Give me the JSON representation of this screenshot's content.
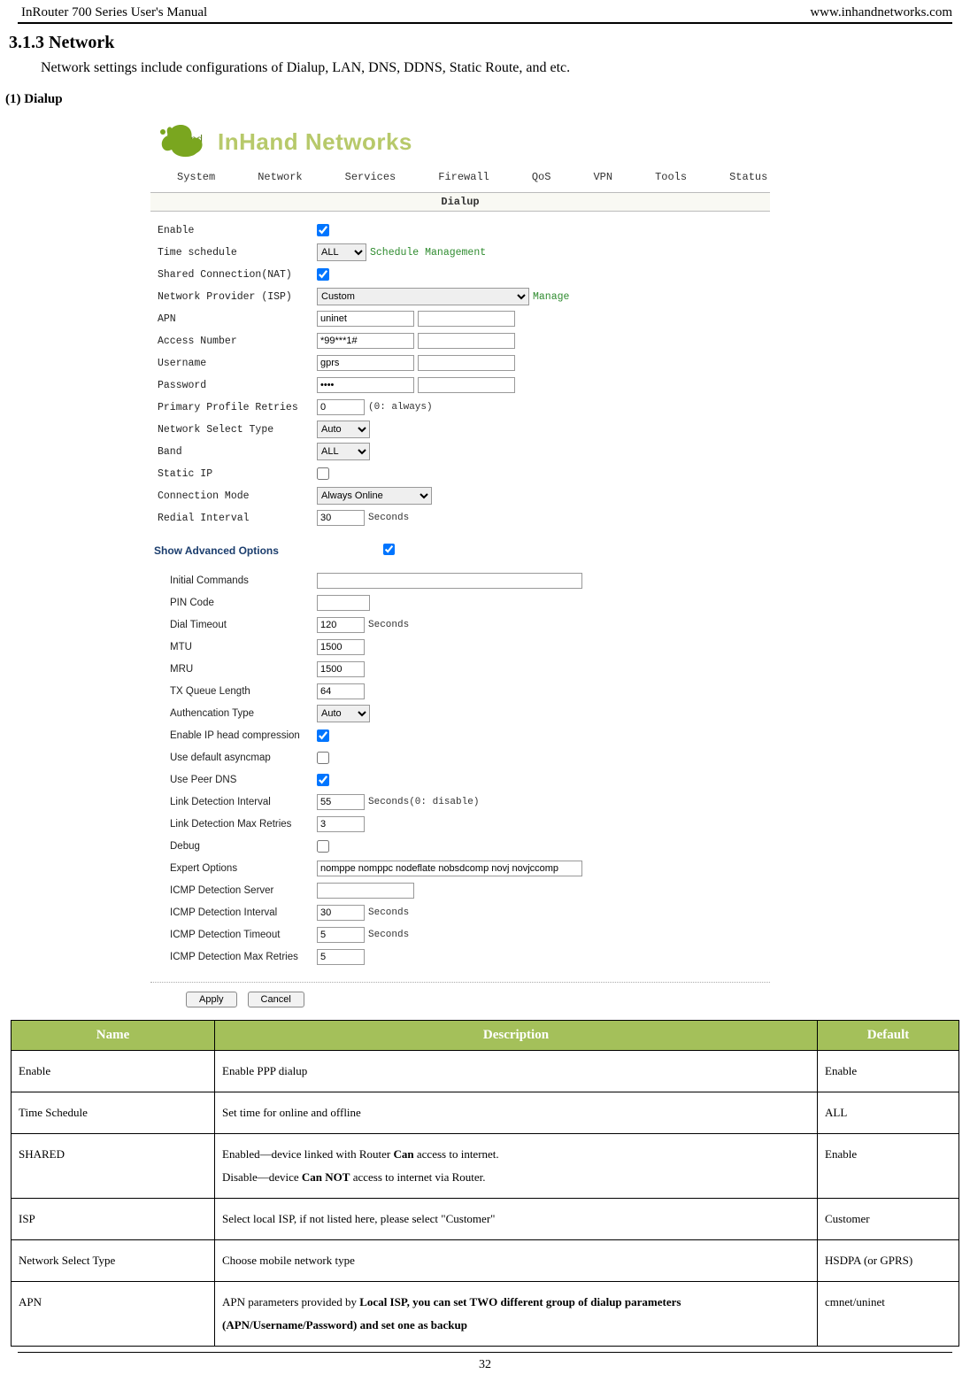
{
  "header": {
    "left": "InRouter 700 Series User's Manual",
    "right": "www.inhandnetworks.com"
  },
  "section": {
    "number_title": "3.1.3 Network",
    "intro": "Network settings include configurations of Dialup, LAN, DNS, DDNS, Static Route, and etc.",
    "sub": "(1)  Dialup"
  },
  "screenshot": {
    "logo": {
      "brand_upper": "InHand Networks",
      "brand_lower": "inhand",
      "mark_color": "#7aa61f"
    },
    "nav": [
      "System",
      "Network",
      "Services",
      "Firewall",
      "QoS",
      "VPN",
      "Tools",
      "Status"
    ],
    "panel_title": "Dialup",
    "fields_top": [
      {
        "label": "Enable",
        "type": "checkbox",
        "checked": true
      },
      {
        "label": "Time schedule",
        "type": "select",
        "value": "ALL",
        "link": "Schedule Management"
      },
      {
        "label": "Shared Connection(NAT)",
        "type": "checkbox",
        "checked": true
      },
      {
        "label": "Network Provider (ISP)",
        "type": "select_wide",
        "value": "Custom",
        "link": "Manage"
      },
      {
        "label": "APN",
        "type": "text_pair",
        "value": "uninet"
      },
      {
        "label": "Access Number",
        "type": "text_pair",
        "value": "*99***1#"
      },
      {
        "label": "Username",
        "type": "text_pair",
        "value": "gprs"
      },
      {
        "label": "Password",
        "type": "password_pair",
        "value": "••••"
      },
      {
        "label": "Primary Profile Retries",
        "type": "text_small",
        "value": "0",
        "after": "(0: always)"
      },
      {
        "label": "Network Select Type",
        "type": "select_small",
        "value": "Auto"
      },
      {
        "label": "Band",
        "type": "select_small",
        "value": "ALL"
      },
      {
        "label": "Static IP",
        "type": "checkbox",
        "checked": false
      },
      {
        "label": "Connection Mode",
        "type": "select_med",
        "value": "Always Online"
      },
      {
        "label": "Redial Interval",
        "type": "text_small",
        "value": "30",
        "after": "Seconds"
      }
    ],
    "adv_title": "Show Advanced Options",
    "adv_checked": true,
    "fields_adv": [
      {
        "label": "Initial Commands",
        "type": "text_long",
        "value": ""
      },
      {
        "label": "PIN Code",
        "type": "text_short",
        "value": ""
      },
      {
        "label": "Dial Timeout",
        "type": "text_small",
        "value": "120",
        "after": "Seconds"
      },
      {
        "label": "MTU",
        "type": "text_small",
        "value": "1500"
      },
      {
        "label": "MRU",
        "type": "text_small",
        "value": "1500"
      },
      {
        "label": "TX Queue Length",
        "type": "text_small",
        "value": "64"
      },
      {
        "label": "Authencation Type",
        "type": "select_small",
        "value": "Auto"
      },
      {
        "label": "Enable IP head compression",
        "type": "checkbox",
        "checked": true
      },
      {
        "label": "Use default asyncmap",
        "type": "checkbox",
        "checked": false
      },
      {
        "label": "Use Peer DNS",
        "type": "checkbox",
        "checked": true
      },
      {
        "label": "Link Detection Interval",
        "type": "text_small",
        "value": "55",
        "after": "Seconds(0: disable)"
      },
      {
        "label": "Link Detection Max Retries",
        "type": "text_small",
        "value": "3"
      },
      {
        "label": "Debug",
        "type": "checkbox",
        "checked": false
      },
      {
        "label": "Expert Options",
        "type": "text_xlong",
        "value": "nomppe nomppc nodeflate nobsdcomp novj novjccomp"
      },
      {
        "label": "ICMP Detection Server",
        "type": "text_med",
        "value": ""
      },
      {
        "label": "ICMP Detection Interval",
        "type": "text_small",
        "value": "30",
        "after": "Seconds"
      },
      {
        "label": "ICMP Detection Timeout",
        "type": "text_small",
        "value": "5",
        "after": "Seconds"
      },
      {
        "label": "ICMP Detection Max Retries",
        "type": "text_small",
        "value": "5"
      }
    ],
    "buttons": {
      "apply": "Apply",
      "cancel": "Cancel"
    }
  },
  "table": {
    "header_bg": "#a4c05a",
    "headers": [
      "Name",
      "Description",
      "Default"
    ],
    "rows": [
      {
        "name": "Enable",
        "desc": "Enable PPP dialup",
        "def": "Enable"
      },
      {
        "name": "Time Schedule",
        "desc": "Set time for online and offline",
        "def": "ALL"
      },
      {
        "name": "SHARED",
        "desc": "Enabled—device linked with Router <b>Can</b> access to internet.<br>Disable—device <b>Can NOT</b> access to internet via Router.",
        "def": "Enable"
      },
      {
        "name": "ISP",
        "desc": "Select local ISP, if not listed here, please select \"Customer\"",
        "def": "Customer"
      },
      {
        "name": "Network Select Type",
        "desc": "Choose mobile network type",
        "def": "HSDPA (or GPRS)"
      },
      {
        "name": "APN",
        "desc": "APN parameters provided by <b>Local ISP, you can set TWO different group of dialup parameters (APN/Username/Password) and set one as backup</b>",
        "def": "cmnet/uninet"
      }
    ]
  },
  "page_number": "32"
}
